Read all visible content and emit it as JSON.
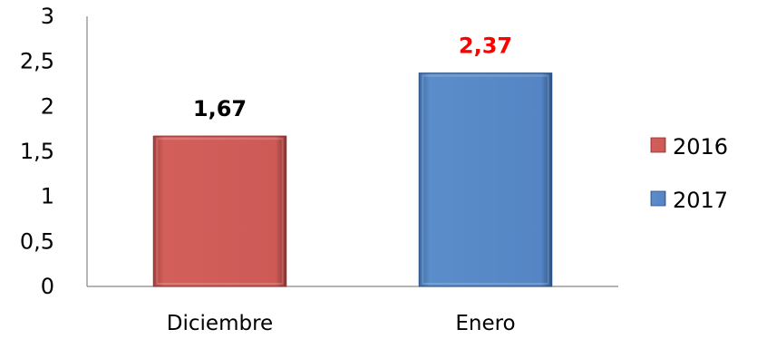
{
  "chart_data": {
    "type": "bar",
    "title": "",
    "xlabel": "",
    "ylabel": "",
    "ylim": [
      0,
      3
    ],
    "y_ticks": [
      "0",
      "0,5",
      "1",
      "1,5",
      "2",
      "2,5",
      "3"
    ],
    "grid": false,
    "legend_position": "right",
    "categories": [
      "Diciembre",
      "Enero"
    ],
    "series": [
      {
        "name": "2016",
        "color": "#c0504d",
        "values": [
          1.67,
          null
        ],
        "data_labels": [
          "1,67",
          ""
        ],
        "label_color": "#000000"
      },
      {
        "name": "2017",
        "color": "#4f81bd",
        "values": [
          null,
          2.37
        ],
        "data_labels": [
          "",
          "2,37"
        ],
        "label_color": "#ff0000"
      }
    ]
  }
}
